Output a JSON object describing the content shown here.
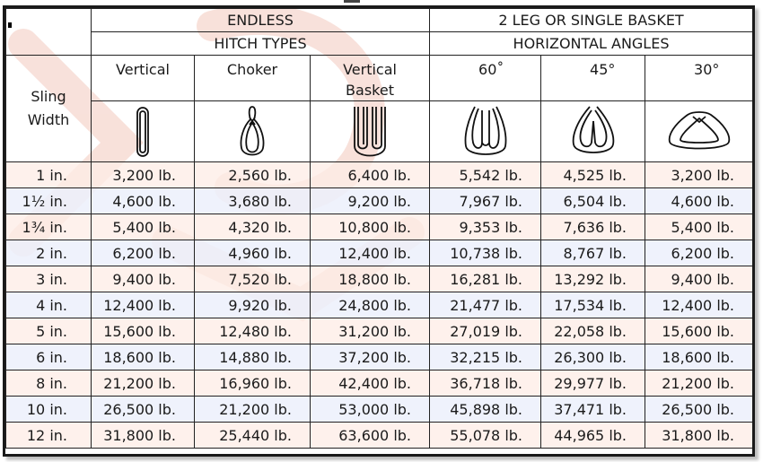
{
  "header": {
    "endless": "ENDLESS",
    "hitch_types": "HITCH TYPES",
    "two_leg": "2 LEG OR SINGLE BASKET",
    "horizontal_angles": "HORIZONTAL ANGLES"
  },
  "columns": {
    "sling_width": [
      "Sling",
      "Width"
    ],
    "vertical": "Vertical",
    "choker": "Choker",
    "vertical_basket": [
      "Vertical",
      "Basket"
    ],
    "deg60": "60˚",
    "deg45": "45°",
    "deg30": "30°"
  },
  "icons": [
    "vertical-sling-icon",
    "choker-hitch-icon",
    "vertical-basket-icon",
    "basket-60-degree-icon",
    "basket-45-degree-icon",
    "basket-30-degree-icon"
  ],
  "colors": {
    "row_pink": "#fdece6",
    "row_blue": "#ecf0fc",
    "border": "#222222",
    "watermark": "#f3c9bd"
  },
  "rows": [
    [
      "1 in.",
      "3,200 lb.",
      "2,560 lb.",
      "6,400 lb.",
      "5,542 lb.",
      "4,525 lb.",
      "3,200 lb."
    ],
    [
      "1½ in.",
      "4,600 lb.",
      "3,680 lb.",
      "9,200 lb.",
      "7,967 lb.",
      "6,504 lb.",
      "4,600 lb."
    ],
    [
      "1¾ in.",
      "5,400 lb.",
      "4,320 lb.",
      "10,800 lb.",
      "9,353 lb.",
      "7,636 lb.",
      "5,400 lb."
    ],
    [
      "2 in.",
      "6,200 lb.",
      "4,960 lb.",
      "12,400 lb.",
      "10,738 lb.",
      "8,767 lb.",
      "6,200 lb."
    ],
    [
      "3 in.",
      "9,400 lb.",
      "7,520 lb.",
      "18,800 lb.",
      "16,281 lb.",
      "13,292 lb.",
      "9,400 lb."
    ],
    [
      "4 in.",
      "12,400 lb.",
      "9,920 lb.",
      "24,800 lb.",
      "21,477 lb.",
      "17,534 lb.",
      "12,400 lb."
    ],
    [
      "5 in.",
      "15,600 lb.",
      "12,480 lb.",
      "31,200 lb.",
      "27,019 lb.",
      "22,058 lb.",
      "15,600 lb."
    ],
    [
      "6 in.",
      "18,600 lb.",
      "14,880 lb.",
      "37,200 lb.",
      "32,215 lb.",
      "26,300 lb.",
      "18,600 lb."
    ],
    [
      "8 in.",
      "21,200 lb.",
      "16,960 lb.",
      "42,400 lb.",
      "36,718 lb.",
      "29,977 lb.",
      "21,200 lb."
    ],
    [
      "10 in.",
      "26,500 lb.",
      "21,200 lb.",
      "53,000 lb.",
      "45,898 lb.",
      "37,471 lb.",
      "26,500 lb."
    ],
    [
      "12 in.",
      "31,800 lb.",
      "25,440 lb.",
      "63,600 lb.",
      "55,078 lb.",
      "44,965 lb.",
      "31,800 lb."
    ]
  ]
}
